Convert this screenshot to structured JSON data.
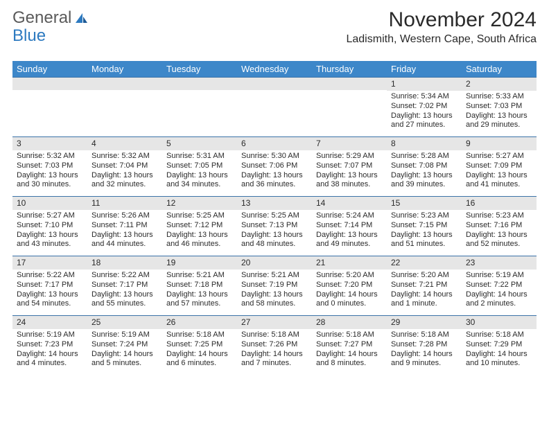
{
  "logo": {
    "word1": "General",
    "word2": "Blue"
  },
  "title": "November 2024",
  "location": "Ladismith, Western Cape, South Africa",
  "colors": {
    "header_bg": "#3d87c9",
    "header_fg": "#ffffff",
    "daynum_bg": "#e6e6e6",
    "row_border": "#3a72a8",
    "logo_gray": "#5a5a5a",
    "logo_blue": "#2d7ac0"
  },
  "typography": {
    "title_fontsize_pt": 22,
    "location_fontsize_pt": 12,
    "dayhead_fontsize_pt": 10,
    "body_fontsize_pt": 8
  },
  "dayNames": [
    "Sunday",
    "Monday",
    "Tuesday",
    "Wednesday",
    "Thursday",
    "Friday",
    "Saturday"
  ],
  "weeks": [
    [
      null,
      null,
      null,
      null,
      null,
      {
        "n": "1",
        "sunrise": "Sunrise: 5:34 AM",
        "sunset": "Sunset: 7:02 PM",
        "daylight": "Daylight: 13 hours and 27 minutes."
      },
      {
        "n": "2",
        "sunrise": "Sunrise: 5:33 AM",
        "sunset": "Sunset: 7:03 PM",
        "daylight": "Daylight: 13 hours and 29 minutes."
      }
    ],
    [
      {
        "n": "3",
        "sunrise": "Sunrise: 5:32 AM",
        "sunset": "Sunset: 7:03 PM",
        "daylight": "Daylight: 13 hours and 30 minutes."
      },
      {
        "n": "4",
        "sunrise": "Sunrise: 5:32 AM",
        "sunset": "Sunset: 7:04 PM",
        "daylight": "Daylight: 13 hours and 32 minutes."
      },
      {
        "n": "5",
        "sunrise": "Sunrise: 5:31 AM",
        "sunset": "Sunset: 7:05 PM",
        "daylight": "Daylight: 13 hours and 34 minutes."
      },
      {
        "n": "6",
        "sunrise": "Sunrise: 5:30 AM",
        "sunset": "Sunset: 7:06 PM",
        "daylight": "Daylight: 13 hours and 36 minutes."
      },
      {
        "n": "7",
        "sunrise": "Sunrise: 5:29 AM",
        "sunset": "Sunset: 7:07 PM",
        "daylight": "Daylight: 13 hours and 38 minutes."
      },
      {
        "n": "8",
        "sunrise": "Sunrise: 5:28 AM",
        "sunset": "Sunset: 7:08 PM",
        "daylight": "Daylight: 13 hours and 39 minutes."
      },
      {
        "n": "9",
        "sunrise": "Sunrise: 5:27 AM",
        "sunset": "Sunset: 7:09 PM",
        "daylight": "Daylight: 13 hours and 41 minutes."
      }
    ],
    [
      {
        "n": "10",
        "sunrise": "Sunrise: 5:27 AM",
        "sunset": "Sunset: 7:10 PM",
        "daylight": "Daylight: 13 hours and 43 minutes."
      },
      {
        "n": "11",
        "sunrise": "Sunrise: 5:26 AM",
        "sunset": "Sunset: 7:11 PM",
        "daylight": "Daylight: 13 hours and 44 minutes."
      },
      {
        "n": "12",
        "sunrise": "Sunrise: 5:25 AM",
        "sunset": "Sunset: 7:12 PM",
        "daylight": "Daylight: 13 hours and 46 minutes."
      },
      {
        "n": "13",
        "sunrise": "Sunrise: 5:25 AM",
        "sunset": "Sunset: 7:13 PM",
        "daylight": "Daylight: 13 hours and 48 minutes."
      },
      {
        "n": "14",
        "sunrise": "Sunrise: 5:24 AM",
        "sunset": "Sunset: 7:14 PM",
        "daylight": "Daylight: 13 hours and 49 minutes."
      },
      {
        "n": "15",
        "sunrise": "Sunrise: 5:23 AM",
        "sunset": "Sunset: 7:15 PM",
        "daylight": "Daylight: 13 hours and 51 minutes."
      },
      {
        "n": "16",
        "sunrise": "Sunrise: 5:23 AM",
        "sunset": "Sunset: 7:16 PM",
        "daylight": "Daylight: 13 hours and 52 minutes."
      }
    ],
    [
      {
        "n": "17",
        "sunrise": "Sunrise: 5:22 AM",
        "sunset": "Sunset: 7:17 PM",
        "daylight": "Daylight: 13 hours and 54 minutes."
      },
      {
        "n": "18",
        "sunrise": "Sunrise: 5:22 AM",
        "sunset": "Sunset: 7:17 PM",
        "daylight": "Daylight: 13 hours and 55 minutes."
      },
      {
        "n": "19",
        "sunrise": "Sunrise: 5:21 AM",
        "sunset": "Sunset: 7:18 PM",
        "daylight": "Daylight: 13 hours and 57 minutes."
      },
      {
        "n": "20",
        "sunrise": "Sunrise: 5:21 AM",
        "sunset": "Sunset: 7:19 PM",
        "daylight": "Daylight: 13 hours and 58 minutes."
      },
      {
        "n": "21",
        "sunrise": "Sunrise: 5:20 AM",
        "sunset": "Sunset: 7:20 PM",
        "daylight": "Daylight: 14 hours and 0 minutes."
      },
      {
        "n": "22",
        "sunrise": "Sunrise: 5:20 AM",
        "sunset": "Sunset: 7:21 PM",
        "daylight": "Daylight: 14 hours and 1 minute."
      },
      {
        "n": "23",
        "sunrise": "Sunrise: 5:19 AM",
        "sunset": "Sunset: 7:22 PM",
        "daylight": "Daylight: 14 hours and 2 minutes."
      }
    ],
    [
      {
        "n": "24",
        "sunrise": "Sunrise: 5:19 AM",
        "sunset": "Sunset: 7:23 PM",
        "daylight": "Daylight: 14 hours and 4 minutes."
      },
      {
        "n": "25",
        "sunrise": "Sunrise: 5:19 AM",
        "sunset": "Sunset: 7:24 PM",
        "daylight": "Daylight: 14 hours and 5 minutes."
      },
      {
        "n": "26",
        "sunrise": "Sunrise: 5:18 AM",
        "sunset": "Sunset: 7:25 PM",
        "daylight": "Daylight: 14 hours and 6 minutes."
      },
      {
        "n": "27",
        "sunrise": "Sunrise: 5:18 AM",
        "sunset": "Sunset: 7:26 PM",
        "daylight": "Daylight: 14 hours and 7 minutes."
      },
      {
        "n": "28",
        "sunrise": "Sunrise: 5:18 AM",
        "sunset": "Sunset: 7:27 PM",
        "daylight": "Daylight: 14 hours and 8 minutes."
      },
      {
        "n": "29",
        "sunrise": "Sunrise: 5:18 AM",
        "sunset": "Sunset: 7:28 PM",
        "daylight": "Daylight: 14 hours and 9 minutes."
      },
      {
        "n": "30",
        "sunrise": "Sunrise: 5:18 AM",
        "sunset": "Sunset: 7:29 PM",
        "daylight": "Daylight: 14 hours and 10 minutes."
      }
    ]
  ]
}
